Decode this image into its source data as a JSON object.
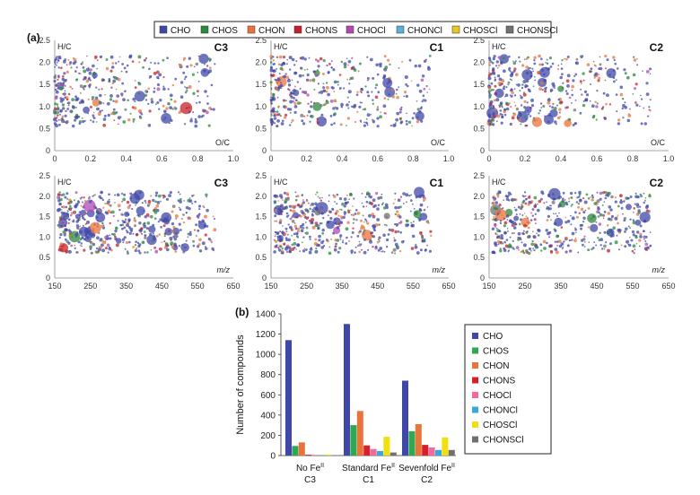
{
  "legend": {
    "items": [
      {
        "name": "CHO",
        "color": "#3f48a8"
      },
      {
        "name": "CHOS",
        "color": "#2c8a3c"
      },
      {
        "name": "CHON",
        "color": "#e8743b"
      },
      {
        "name": "CHONS",
        "color": "#c8202a"
      },
      {
        "name": "CHOCl",
        "color": "#b04ab0"
      },
      {
        "name": "CHONCl",
        "color": "#5ab0d8"
      },
      {
        "name": "CHOSCl",
        "color": "#e8c820"
      },
      {
        "name": "CHONSCl",
        "color": "#707070"
      }
    ]
  },
  "panel_a_label": "(a)",
  "panel_b_label": "(b)",
  "chart_data": [
    {
      "type": "scatter",
      "panel": "C3",
      "xlabel": "O/C",
      "ylabel": "H/C",
      "xlim": [
        0,
        1.0
      ],
      "ylim": [
        0,
        2.5
      ],
      "xticks": [
        "0",
        "0.2",
        "0.4",
        "0.6",
        "0.8",
        "1.0"
      ],
      "yticks": [
        "0",
        "0.5",
        "1.0",
        "1.5",
        "2.0",
        "2.5"
      ]
    },
    {
      "type": "scatter",
      "panel": "C1",
      "xlabel": "O/C",
      "ylabel": "H/C",
      "xlim": [
        0,
        1.0
      ],
      "ylim": [
        0,
        2.5
      ],
      "xticks": [
        "0",
        "0.2",
        "0.4",
        "0.6",
        "0.8",
        "1.0"
      ],
      "yticks": [
        "0",
        "0.5",
        "1.0",
        "1.5",
        "2.0",
        "2.5"
      ]
    },
    {
      "type": "scatter",
      "panel": "C2",
      "xlabel": "O/C",
      "ylabel": "H/C",
      "xlim": [
        0,
        1.0
      ],
      "ylim": [
        0,
        2.5
      ],
      "xticks": [
        "0",
        "0.2",
        "0.4",
        "0.6",
        "0.8",
        "1.0"
      ],
      "yticks": [
        "0",
        "0.5",
        "1.0",
        "1.5",
        "2.0",
        "2.5"
      ]
    },
    {
      "type": "scatter",
      "panel": "C3",
      "xlabel": "m/z",
      "ylabel": "H/C",
      "xlim": [
        150,
        650
      ],
      "ylim": [
        0,
        2.5
      ],
      "xticks": [
        "150",
        "250",
        "350",
        "450",
        "550",
        "650"
      ],
      "yticks": [
        "0",
        "0.5",
        "1.0",
        "1.5",
        "2.0",
        "2.5"
      ]
    },
    {
      "type": "scatter",
      "panel": "C1",
      "xlabel": "m/z",
      "ylabel": "H/C",
      "xlim": [
        150,
        650
      ],
      "ylim": [
        0,
        2.5
      ],
      "xticks": [
        "150",
        "250",
        "350",
        "450",
        "550",
        "650"
      ],
      "yticks": [
        "0",
        "0.5",
        "1.0",
        "1.5",
        "2.0",
        "2.5"
      ]
    },
    {
      "type": "scatter",
      "panel": "C2",
      "xlabel": "m/z",
      "ylabel": "H/C",
      "xlim": [
        150,
        650
      ],
      "ylim": [
        0,
        2.5
      ],
      "xticks": [
        "150",
        "250",
        "350",
        "450",
        "550",
        "650"
      ],
      "yticks": [
        "0",
        "0.5",
        "1.0",
        "1.5",
        "2.0",
        "2.5"
      ]
    },
    {
      "type": "bar",
      "ylabel": "Number of compounds",
      "ylim": [
        0,
        1400
      ],
      "yticks": [
        "0",
        "200",
        "400",
        "600",
        "800",
        "1000",
        "1200",
        "1400"
      ],
      "categories": [
        {
          "line1": "No Fe",
          "sup": "II",
          "line2": "C3"
        },
        {
          "line1": "Standard Fe",
          "sup": "II",
          "line2": "C1"
        },
        {
          "line1": "Sevenfold Fe",
          "sup": "II",
          "line2": "C2"
        }
      ],
      "series": [
        {
          "name": "CHO",
          "color": "#3f48a8",
          "values": [
            1140,
            1300,
            740
          ]
        },
        {
          "name": "CHOS",
          "color": "#2fa84f",
          "values": [
            95,
            300,
            240
          ]
        },
        {
          "name": "CHON",
          "color": "#e8743b",
          "values": [
            130,
            440,
            310
          ]
        },
        {
          "name": "CHONS",
          "color": "#d8202a",
          "values": [
            8,
            100,
            105
          ]
        },
        {
          "name": "CHOCl",
          "color": "#f06aa0",
          "values": [
            5,
            65,
            80
          ]
        },
        {
          "name": "CHONCl",
          "color": "#38a8d8",
          "values": [
            3,
            45,
            55
          ]
        },
        {
          "name": "CHOSCl",
          "color": "#f0e010",
          "values": [
            10,
            185,
            180
          ]
        },
        {
          "name": "CHONSCl",
          "color": "#707070",
          "values": [
            3,
            30,
            55
          ]
        }
      ]
    }
  ]
}
